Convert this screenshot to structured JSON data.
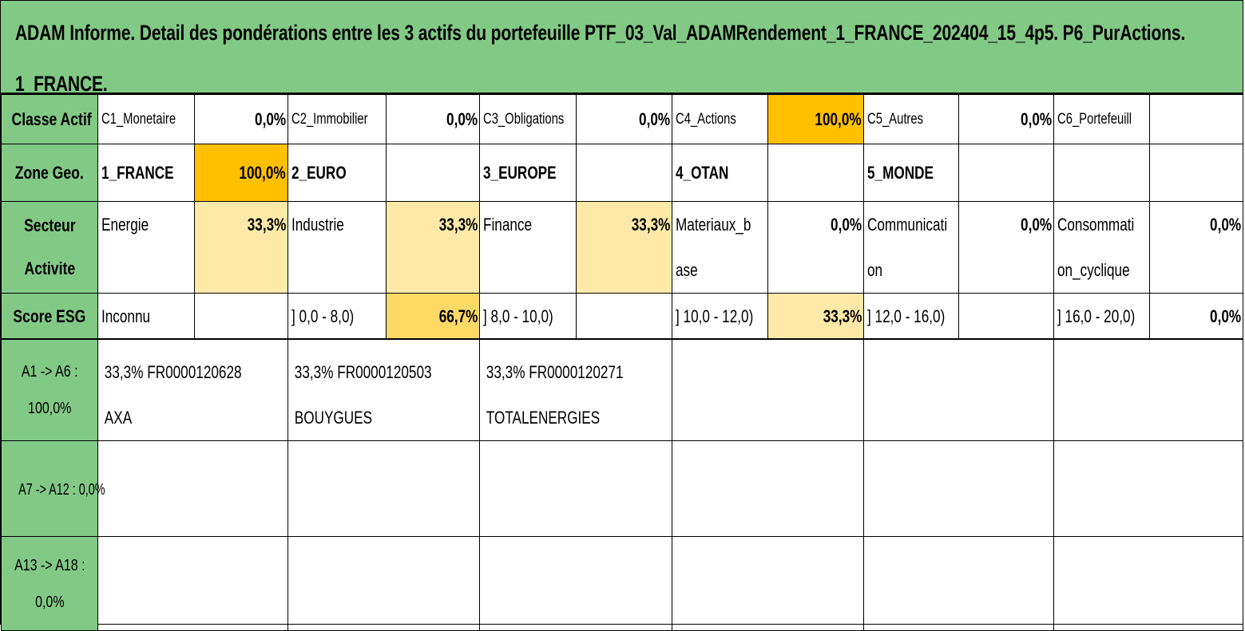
{
  "title": "ADAM Informe. Detail des pondérations entre les 3 actifs du portefeuille PTF_03_Val_ADAMRendement_1_FRANCE_202404_15_4p5. P6_PurActions. 1_FRANCE.",
  "rows": {
    "classe_actif": {
      "label": "Classe Actif",
      "cells": [
        {
          "name": "C1_Monetaire",
          "pct": "0,0%"
        },
        {
          "name": "C2_Immobilier",
          "pct": "0,0%"
        },
        {
          "name": "C3_Obligations",
          "pct": "0,0%"
        },
        {
          "name": "C4_Actions",
          "pct": "100,0%"
        },
        {
          "name": "C5_Autres",
          "pct": "0,0%"
        },
        {
          "name": "C6_Portefeuill",
          "pct": ""
        }
      ]
    },
    "zone_geo": {
      "label": "Zone Geo.",
      "cells": [
        {
          "name": "1_FRANCE",
          "pct": "100,0%"
        },
        {
          "name": "2_EURO",
          "pct": ""
        },
        {
          "name": "3_EUROPE",
          "pct": ""
        },
        {
          "name": "4_OTAN",
          "pct": ""
        },
        {
          "name": "5_MONDE",
          "pct": ""
        },
        {
          "name": "",
          "pct": ""
        }
      ]
    },
    "secteur": {
      "label_line1": "Secteur",
      "label_line2": "Activite",
      "cells": [
        {
          "name1": "Energie",
          "name2": "",
          "pct": "33,3%"
        },
        {
          "name1": "Industrie",
          "name2": "",
          "pct": "33,3%"
        },
        {
          "name1": "Finance",
          "name2": "",
          "pct": "33,3%"
        },
        {
          "name1": "Materiaux_b",
          "name2": "ase",
          "pct": "0,0%"
        },
        {
          "name1": "Communicati",
          "name2": "on",
          "pct": "0,0%"
        },
        {
          "name1": "Consommati",
          "name2": "on_cyclique",
          "pct": "0,0%"
        }
      ]
    },
    "score_esg": {
      "label": "Score ESG",
      "cells": [
        {
          "name": "Inconnu",
          "pct": ""
        },
        {
          "name": "] 0,0 - 8,0)",
          "pct": "66,7%"
        },
        {
          "name": "] 8,0 - 10,0)",
          "pct": ""
        },
        {
          "name": "] 10,0 - 12,0)",
          "pct": "33,3%"
        },
        {
          "name": "] 12,0 - 16,0)",
          "pct": ""
        },
        {
          "name": "] 16,0 - 20,0)",
          "pct": "0,0%"
        }
      ]
    }
  },
  "assets": {
    "group1": {
      "label_line1": "A1 -> A6 :",
      "label_line2": "100,0%",
      "items": [
        {
          "line1": "33,3% FR0000120628",
          "line2": "AXA"
        },
        {
          "line1": "33,3% FR0000120503",
          "line2": "BOUYGUES"
        },
        {
          "line1": "33,3% FR0000120271",
          "line2": "TOTALENERGIES"
        }
      ]
    },
    "group2": {
      "label": "A7 -> A12 : 0,0%"
    },
    "group3": {
      "label_line1": "A13 -> A18 :",
      "label_line2": "0,0%"
    }
  },
  "colors": {
    "header_green": "#82c985",
    "weight_100": "#ffc000",
    "weight_67": "#ffd966",
    "weight_33": "#ffe9a8"
  }
}
